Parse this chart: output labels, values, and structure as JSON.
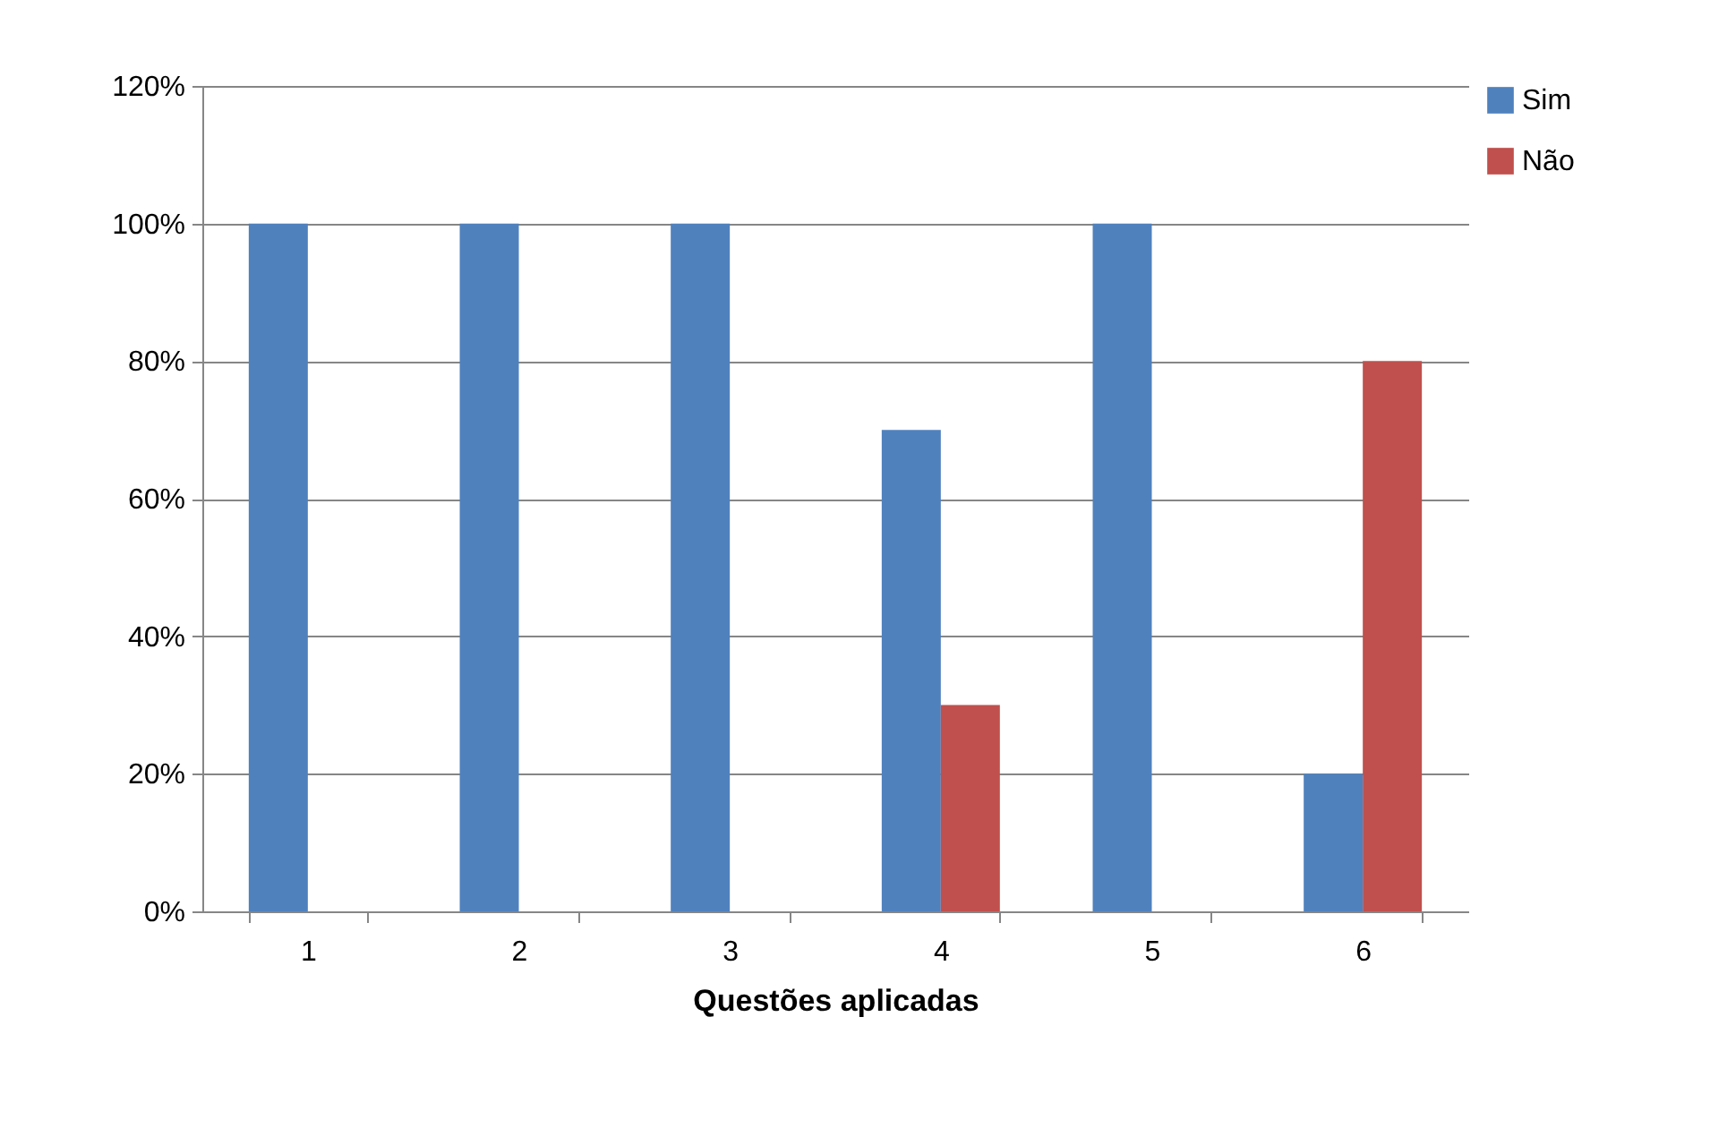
{
  "chart_data": {
    "type": "bar",
    "xlabel": "Questões aplicadas",
    "categories": [
      "1",
      "2",
      "3",
      "4",
      "5",
      "6"
    ],
    "series": [
      {
        "name": "Sim",
        "color": "#4f81bd",
        "values": [
          100,
          100,
          100,
          70,
          100,
          20
        ]
      },
      {
        "name": "Não",
        "color": "#c0504d",
        "values": [
          0,
          0,
          0,
          30,
          0,
          80
        ]
      }
    ],
    "ylim": [
      0,
      120
    ],
    "yticks": [
      {
        "value": 0,
        "label": "0%"
      },
      {
        "value": 20,
        "label": "20%"
      },
      {
        "value": 40,
        "label": "40%"
      },
      {
        "value": 60,
        "label": "60%"
      },
      {
        "value": 80,
        "label": "80%"
      },
      {
        "value": 100,
        "label": "100%"
      },
      {
        "value": 120,
        "label": "120%"
      }
    ],
    "grid": "y",
    "legend": "right"
  }
}
